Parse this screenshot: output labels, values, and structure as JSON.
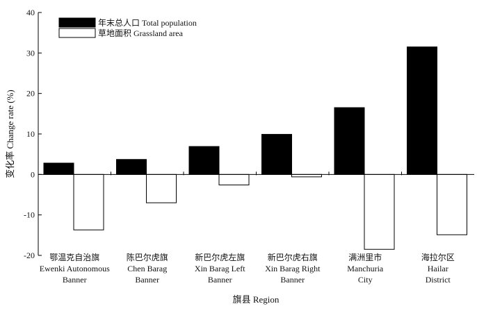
{
  "chart_data": {
    "type": "bar",
    "title": "",
    "xlabel": "旗县 Region",
    "ylabel": "变化率 Change rate (%)",
    "ylim": [
      -20,
      40
    ],
    "yticks": [
      -20,
      -10,
      0,
      10,
      20,
      30,
      40
    ],
    "ytick_labels": [
      "-20",
      "-10",
      "0",
      "10",
      "20",
      "30",
      "40"
    ],
    "grid": false,
    "legend_position": "top-left",
    "categories": [
      [
        "鄂温克自治旗",
        "Ewenki Autonomous",
        "Banner"
      ],
      [
        "陈巴尔虎旗",
        "Chen Barag",
        "Banner"
      ],
      [
        "新巴尔虎左旗",
        "Xin Barag Left",
        "Banner"
      ],
      [
        "新巴尔虎右旗",
        "Xin Barag Right",
        "Banner"
      ],
      [
        "满洲里市",
        "Manchuria",
        "City"
      ],
      [
        "海拉尔区",
        "Hailar",
        "District"
      ]
    ],
    "series": [
      {
        "name": "年末总人口 Total population",
        "color": "#000000",
        "values": [
          2.8,
          3.7,
          6.9,
          9.9,
          16.5,
          31.5
        ]
      },
      {
        "name": "草地面积 Grassland area",
        "color": "#ffffff",
        "values": [
          -13.7,
          -7.0,
          -2.6,
          -0.6,
          -18.5,
          -14.9
        ]
      }
    ]
  }
}
